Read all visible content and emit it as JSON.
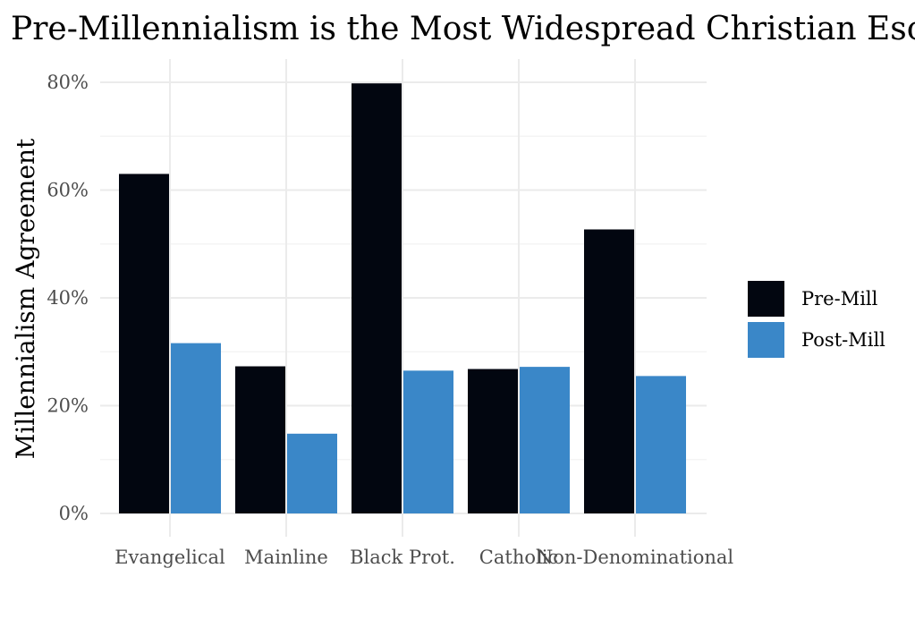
{
  "chart_data": {
    "type": "bar",
    "title": "Pre-Millennialism is the Most Widespread Christian Eschatology",
    "xlabel": "",
    "ylabel": "Millennialism Agreement",
    "categories": [
      "Evangelical",
      "Mainline",
      "Black Prot.",
      "Catholic",
      "Non-Denominational"
    ],
    "series": [
      {
        "name": "Pre-Mill",
        "color": "#020610",
        "values": [
          63,
          27.3,
          79.8,
          26.8,
          52.7
        ]
      },
      {
        "name": "Post-Mill",
        "color": "#3a87c8",
        "values": [
          31.6,
          14.8,
          26.5,
          27.2,
          25.5
        ]
      }
    ],
    "ylim": [
      0,
      80
    ],
    "yticks": [
      0,
      20,
      40,
      60,
      80
    ],
    "ytick_labels": [
      "0%",
      "20%",
      "40%",
      "60%",
      "80%"
    ],
    "grid": true,
    "legend_position": "right"
  }
}
